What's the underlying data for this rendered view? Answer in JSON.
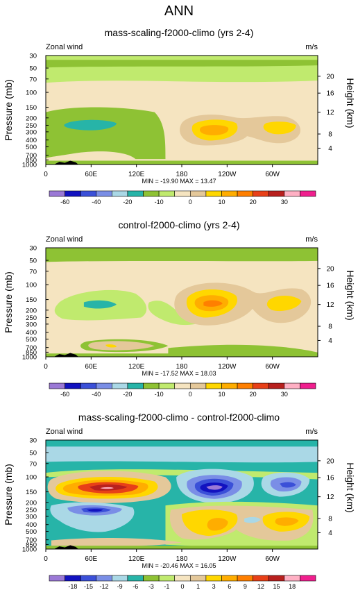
{
  "figure_title": "ANN",
  "chart_data": [
    {
      "type": "heatmap",
      "title": "mass-scaling-f2000-climo (yrs 2-4)",
      "left_label": "Zonal wind",
      "units": "m/s",
      "ylabel": "Pressure (mb)",
      "ylabel_right": "Height (km)",
      "x_ticks": [
        "0",
        "60E",
        "120E",
        "180",
        "120W",
        "60W"
      ],
      "y_ticks": [
        "30",
        "50",
        "70",
        "100",
        "150",
        "200",
        "250",
        "300",
        "400",
        "500",
        "700",
        "850",
        "1000"
      ],
      "height_ticks": [
        "20",
        "16",
        "12",
        "8",
        "4"
      ],
      "ylim": [
        1000,
        30
      ],
      "min": -19.9,
      "max": 13.47,
      "stats_text": "MIN = -19.90   MAX = 13.47",
      "colorbar_labels": [
        "-60",
        "-40",
        "-20",
        "-10",
        "0",
        "10",
        "20",
        "30"
      ],
      "colorbar_levels": [
        -70,
        -60,
        -50,
        -40,
        -30,
        -20,
        -15,
        -10,
        -5,
        0,
        5,
        10,
        15,
        20,
        25,
        30,
        35
      ]
    },
    {
      "type": "heatmap",
      "title": "control-f2000-climo (yrs 2-4)",
      "left_label": "Zonal wind",
      "units": "m/s",
      "ylabel": "Pressure (mb)",
      "ylabel_right": "Height (km)",
      "x_ticks": [
        "0",
        "60E",
        "120E",
        "180",
        "120W",
        "60W"
      ],
      "y_ticks": [
        "30",
        "50",
        "70",
        "100",
        "150",
        "200",
        "250",
        "300",
        "400",
        "500",
        "700",
        "850",
        "1000"
      ],
      "height_ticks": [
        "20",
        "16",
        "12",
        "8",
        "4"
      ],
      "ylim": [
        1000,
        30
      ],
      "min": -17.52,
      "max": 18.03,
      "stats_text": "MIN = -17.52   MAX = 18.03",
      "colorbar_labels": [
        "-60",
        "-40",
        "-20",
        "-10",
        "0",
        "10",
        "20",
        "30"
      ],
      "colorbar_levels": [
        -70,
        -60,
        -50,
        -40,
        -30,
        -20,
        -15,
        -10,
        -5,
        0,
        5,
        10,
        15,
        20,
        25,
        30,
        35
      ]
    },
    {
      "type": "heatmap",
      "title": "mass-scaling-f2000-climo - control-f2000-climo",
      "left_label": "Zonal wind",
      "units": "m/s",
      "ylabel": "Pressure (mb)",
      "ylabel_right": "Height (km)",
      "x_ticks": [
        "0",
        "60E",
        "120E",
        "180",
        "120W",
        "60W"
      ],
      "y_ticks": [
        "30",
        "50",
        "70",
        "100",
        "150",
        "200",
        "250",
        "300",
        "400",
        "500",
        "700",
        "850",
        "1000"
      ],
      "height_ticks": [
        "20",
        "16",
        "12",
        "8",
        "4"
      ],
      "ylim": [
        1000,
        30
      ],
      "min": -20.46,
      "max": 16.05,
      "stats_text": "MIN = -20.46   MAX = 16.05",
      "colorbar_labels": [
        "-18",
        "-15",
        "-12",
        "-9",
        "-6",
        "-3",
        "-1",
        "0",
        "1",
        "3",
        "6",
        "9",
        "12",
        "15",
        "18"
      ],
      "colorbar_levels": [
        -21,
        -18,
        -15,
        -12,
        -9,
        -6,
        -3,
        -1,
        0,
        1,
        3,
        6,
        9,
        12,
        15,
        18,
        21
      ]
    }
  ],
  "colors": {
    "palette": [
      "#9b79d6",
      "#1212c0",
      "#3b50d8",
      "#7a8ee6",
      "#aad8e6",
      "#27b4a8",
      "#8ec234",
      "#c0ea6e",
      "#f5e4c0",
      "#e4c89a",
      "#ffd700",
      "#ffad00",
      "#ff7f00",
      "#e84018",
      "#b8201e",
      "#ffb0c4",
      "#f01f8e"
    ]
  }
}
